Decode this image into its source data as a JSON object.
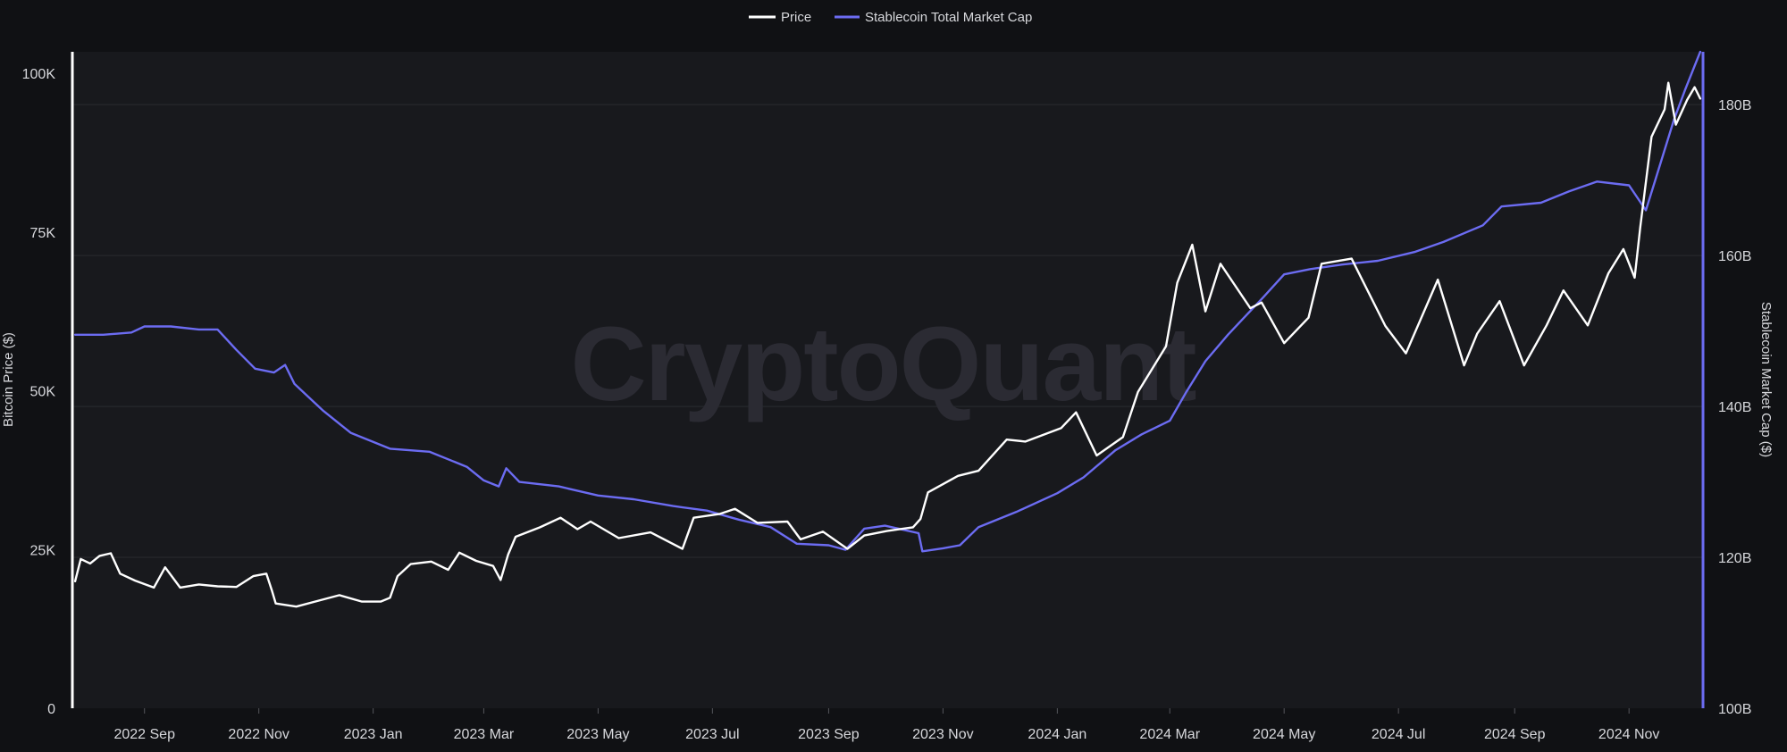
{
  "colors": {
    "page_bg": "#101114",
    "plot_bg": "#18191d",
    "grid": "#2a2b30",
    "text": "#d7d8dc",
    "price": "#ffffff",
    "stablecoin": "#6c6cf2",
    "watermark": "#2b2b33"
  },
  "watermark": "CryptoQuant",
  "chart_data": {
    "type": "line",
    "legend_position": "top-center",
    "grid": true,
    "x_range": [
      "2022-07-25",
      "2024-12-10"
    ],
    "x_ticks": [
      {
        "date": "2022-09-01",
        "label": "2022 Sep"
      },
      {
        "date": "2022-11-01",
        "label": "2022 Nov"
      },
      {
        "date": "2023-01-01",
        "label": "2023 Jan"
      },
      {
        "date": "2023-03-01",
        "label": "2023 Mar"
      },
      {
        "date": "2023-05-01",
        "label": "2023 May"
      },
      {
        "date": "2023-07-01",
        "label": "2023 Jul"
      },
      {
        "date": "2023-09-01",
        "label": "2023 Sep"
      },
      {
        "date": "2023-11-01",
        "label": "2023 Nov"
      },
      {
        "date": "2024-01-01",
        "label": "2024 Jan"
      },
      {
        "date": "2024-03-01",
        "label": "2024 Mar"
      },
      {
        "date": "2024-05-01",
        "label": "2024 May"
      },
      {
        "date": "2024-07-01",
        "label": "2024 Jul"
      },
      {
        "date": "2024-09-01",
        "label": "2024 Sep"
      },
      {
        "date": "2024-11-01",
        "label": "2024 Nov"
      }
    ],
    "y_left": {
      "label": "Bitcoin Price ($)",
      "range": [
        0,
        100000
      ],
      "ticks": [
        {
          "value": 0,
          "label": "0"
        },
        {
          "value": 25000,
          "label": "25K"
        },
        {
          "value": 50000,
          "label": "50K"
        },
        {
          "value": 75000,
          "label": "75K"
        },
        {
          "value": 100000,
          "label": "100K"
        }
      ]
    },
    "y_right": {
      "label": "Stablecoin Market Cap ($)",
      "range": [
        100000000000,
        187000000000
      ],
      "ticks": [
        {
          "value": 100000000000,
          "label": "100B"
        },
        {
          "value": 120000000000,
          "label": "120B"
        },
        {
          "value": 140000000000,
          "label": "140B"
        },
        {
          "value": 160000000000,
          "label": "160B"
        },
        {
          "value": 180000000000,
          "label": "180B"
        }
      ]
    },
    "series": [
      {
        "name": "Price",
        "axis": "left",
        "color": "#ffffff",
        "points": [
          [
            "2022-07-26",
            20000
          ],
          [
            "2022-07-29",
            23500
          ],
          [
            "2022-08-03",
            22800
          ],
          [
            "2022-08-08",
            24000
          ],
          [
            "2022-08-14",
            24400
          ],
          [
            "2022-08-19",
            21200
          ],
          [
            "2022-08-27",
            20100
          ],
          [
            "2022-09-06",
            19000
          ],
          [
            "2022-09-12",
            22200
          ],
          [
            "2022-09-20",
            19000
          ],
          [
            "2022-09-30",
            19500
          ],
          [
            "2022-10-10",
            19200
          ],
          [
            "2022-10-20",
            19100
          ],
          [
            "2022-10-29",
            20800
          ],
          [
            "2022-11-05",
            21200
          ],
          [
            "2022-11-08",
            18500
          ],
          [
            "2022-11-10",
            16500
          ],
          [
            "2022-11-21",
            16000
          ],
          [
            "2022-12-05",
            17100
          ],
          [
            "2022-12-14",
            17800
          ],
          [
            "2022-12-26",
            16800
          ],
          [
            "2023-01-05",
            16800
          ],
          [
            "2023-01-10",
            17400
          ],
          [
            "2023-01-14",
            20800
          ],
          [
            "2023-01-21",
            22700
          ],
          [
            "2023-02-01",
            23100
          ],
          [
            "2023-02-10",
            21800
          ],
          [
            "2023-02-16",
            24500
          ],
          [
            "2023-02-25",
            23200
          ],
          [
            "2023-03-06",
            22400
          ],
          [
            "2023-03-10",
            20200
          ],
          [
            "2023-03-14",
            24200
          ],
          [
            "2023-03-18",
            27000
          ],
          [
            "2023-03-31",
            28500
          ],
          [
            "2023-04-11",
            30000
          ],
          [
            "2023-04-20",
            28200
          ],
          [
            "2023-04-27",
            29400
          ],
          [
            "2023-05-12",
            26800
          ],
          [
            "2023-05-29",
            27700
          ],
          [
            "2023-06-15",
            25100
          ],
          [
            "2023-06-21",
            30000
          ],
          [
            "2023-07-05",
            30600
          ],
          [
            "2023-07-13",
            31400
          ],
          [
            "2023-07-25",
            29200
          ],
          [
            "2023-08-10",
            29400
          ],
          [
            "2023-08-17",
            26600
          ],
          [
            "2023-08-29",
            27800
          ],
          [
            "2023-09-11",
            25100
          ],
          [
            "2023-09-20",
            27200
          ],
          [
            "2023-10-02",
            27900
          ],
          [
            "2023-10-16",
            28500
          ],
          [
            "2023-10-20",
            29800
          ],
          [
            "2023-10-24",
            34000
          ],
          [
            "2023-11-09",
            36600
          ],
          [
            "2023-11-20",
            37400
          ],
          [
            "2023-12-05",
            42300
          ],
          [
            "2023-12-15",
            42000
          ],
          [
            "2024-01-03",
            44100
          ],
          [
            "2024-01-11",
            46600
          ],
          [
            "2024-01-22",
            39800
          ],
          [
            "2024-02-05",
            42700
          ],
          [
            "2024-02-13",
            49800
          ],
          [
            "2024-02-28",
            57000
          ],
          [
            "2024-03-05",
            67000
          ],
          [
            "2024-03-13",
            73000
          ],
          [
            "2024-03-20",
            62500
          ],
          [
            "2024-03-28",
            70000
          ],
          [
            "2024-04-13",
            63000
          ],
          [
            "2024-04-19",
            63900
          ],
          [
            "2024-05-01",
            57500
          ],
          [
            "2024-05-14",
            61500
          ],
          [
            "2024-05-21",
            70000
          ],
          [
            "2024-06-06",
            70800
          ],
          [
            "2024-06-24",
            60200
          ],
          [
            "2024-07-05",
            55900
          ],
          [
            "2024-07-22",
            67500
          ],
          [
            "2024-08-05",
            54000
          ],
          [
            "2024-08-12",
            59000
          ],
          [
            "2024-08-24",
            64100
          ],
          [
            "2024-09-06",
            54000
          ],
          [
            "2024-09-18",
            60300
          ],
          [
            "2024-09-27",
            65800
          ],
          [
            "2024-10-10",
            60300
          ],
          [
            "2024-10-21",
            68500
          ],
          [
            "2024-10-29",
            72300
          ],
          [
            "2024-11-04",
            67800
          ],
          [
            "2024-11-07",
            75800
          ],
          [
            "2024-11-13",
            90000
          ],
          [
            "2024-11-20",
            94300
          ],
          [
            "2024-11-22",
            98500
          ],
          [
            "2024-11-26",
            91900
          ],
          [
            "2024-12-02",
            95800
          ],
          [
            "2024-12-06",
            97800
          ],
          [
            "2024-12-09",
            96000
          ]
        ]
      },
      {
        "name": "Stablecoin Total Market Cap",
        "axis": "right",
        "color": "#6c6cf2",
        "points": [
          [
            "2022-07-26",
            149500000000
          ],
          [
            "2022-08-10",
            149500000000
          ],
          [
            "2022-08-25",
            149800000000
          ],
          [
            "2022-09-01",
            150600000000
          ],
          [
            "2022-09-15",
            150600000000
          ],
          [
            "2022-09-30",
            150200000000
          ],
          [
            "2022-10-10",
            150200000000
          ],
          [
            "2022-10-20",
            147500000000
          ],
          [
            "2022-10-30",
            145000000000
          ],
          [
            "2022-11-09",
            144500000000
          ],
          [
            "2022-11-15",
            145500000000
          ],
          [
            "2022-11-20",
            143000000000
          ],
          [
            "2022-12-05",
            139500000000
          ],
          [
            "2022-12-20",
            136500000000
          ],
          [
            "2023-01-10",
            134400000000
          ],
          [
            "2023-01-31",
            134000000000
          ],
          [
            "2023-02-20",
            132000000000
          ],
          [
            "2023-03-01",
            130200000000
          ],
          [
            "2023-03-09",
            129400000000
          ],
          [
            "2023-03-13",
            131800000000
          ],
          [
            "2023-03-20",
            130000000000
          ],
          [
            "2023-04-10",
            129400000000
          ],
          [
            "2023-05-01",
            128200000000
          ],
          [
            "2023-05-20",
            127700000000
          ],
          [
            "2023-06-10",
            126800000000
          ],
          [
            "2023-06-28",
            126200000000
          ],
          [
            "2023-07-15",
            125000000000
          ],
          [
            "2023-08-01",
            124000000000
          ],
          [
            "2023-08-15",
            121800000000
          ],
          [
            "2023-09-01",
            121600000000
          ],
          [
            "2023-09-10",
            121000000000
          ],
          [
            "2023-09-20",
            123800000000
          ],
          [
            "2023-10-01",
            124200000000
          ],
          [
            "2023-10-19",
            123200000000
          ],
          [
            "2023-10-21",
            120800000000
          ],
          [
            "2023-11-01",
            121200000000
          ],
          [
            "2023-11-10",
            121600000000
          ],
          [
            "2023-11-20",
            124000000000
          ],
          [
            "2023-12-10",
            126000000000
          ],
          [
            "2024-01-01",
            128500000000
          ],
          [
            "2024-01-15",
            130600000000
          ],
          [
            "2024-02-01",
            134200000000
          ],
          [
            "2024-02-15",
            136300000000
          ],
          [
            "2024-03-01",
            138100000000
          ],
          [
            "2024-03-10",
            142000000000
          ],
          [
            "2024-03-20",
            146000000000
          ],
          [
            "2024-04-01",
            149500000000
          ],
          [
            "2024-04-20",
            154500000000
          ],
          [
            "2024-05-01",
            157500000000
          ],
          [
            "2024-05-15",
            158200000000
          ],
          [
            "2024-06-01",
            158800000000
          ],
          [
            "2024-06-20",
            159300000000
          ],
          [
            "2024-07-10",
            160500000000
          ],
          [
            "2024-07-25",
            161800000000
          ],
          [
            "2024-08-15",
            164000000000
          ],
          [
            "2024-08-25",
            166500000000
          ],
          [
            "2024-09-15",
            167000000000
          ],
          [
            "2024-09-30",
            168500000000
          ],
          [
            "2024-10-15",
            169800000000
          ],
          [
            "2024-11-01",
            169300000000
          ],
          [
            "2024-11-10",
            166000000000
          ],
          [
            "2024-11-15",
            170000000000
          ],
          [
            "2024-11-25",
            178000000000
          ],
          [
            "2024-12-01",
            182000000000
          ],
          [
            "2024-12-09",
            187000000000
          ]
        ]
      }
    ]
  }
}
